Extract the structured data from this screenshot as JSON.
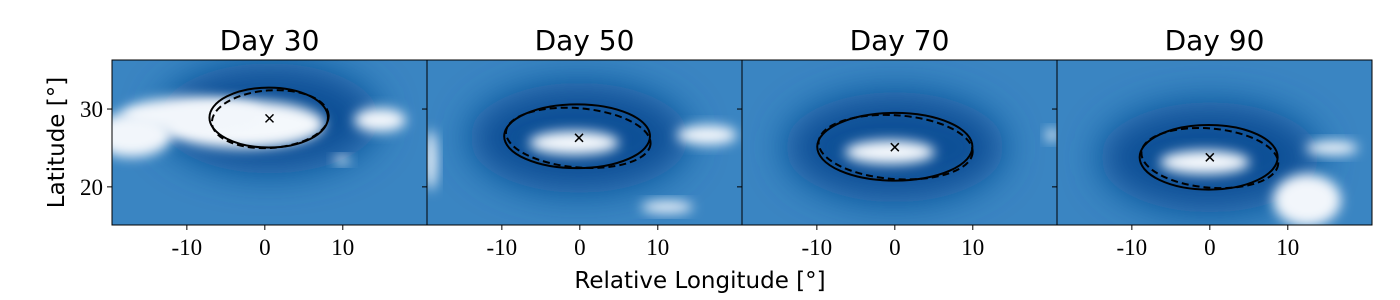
{
  "xlabel": "Relative Longitude [°]",
  "chart_data": [
    {
      "type": "heatmap",
      "title": "Day 30",
      "ylabel": "Latitude [°]",
      "ytick_labels": true,
      "xlim": [
        -19.6,
        20.8
      ],
      "ylim": [
        15.1,
        36.3
      ],
      "xticks": [
        -10,
        0,
        10
      ],
      "yticks": [
        20,
        30
      ],
      "marker": {
        "x": 0.6,
        "y": 28.8
      },
      "ellipses": [
        {
          "x": 0.5,
          "y": 28.9,
          "a": 7.6,
          "b": 3.85,
          "angle": 0,
          "style": "solid"
        },
        {
          "x": 0.7,
          "y": 28.7,
          "a": 7.5,
          "b": 3.7,
          "angle": 4,
          "style": "dashed"
        }
      ]
    },
    {
      "type": "heatmap",
      "title": "Day 50",
      "ytick_labels": false,
      "xlim": [
        -19.6,
        20.8
      ],
      "ylim": [
        15.1,
        36.3
      ],
      "xticks": [
        -10,
        0,
        10
      ],
      "yticks": [
        20,
        30
      ],
      "marker": {
        "x": -0.1,
        "y": 26.3
      },
      "ellipses": [
        {
          "x": -0.35,
          "y": 26.5,
          "a": 9.35,
          "b": 4.1,
          "angle": 0,
          "style": "solid"
        },
        {
          "x": -0.2,
          "y": 26.3,
          "a": 9.3,
          "b": 3.8,
          "angle": -5,
          "style": "dashed"
        }
      ]
    },
    {
      "type": "heatmap",
      "title": "Day 70",
      "ytick_labels": false,
      "xlim": [
        -19.6,
        20.8
      ],
      "ylim": [
        15.1,
        36.3
      ],
      "xticks": [
        -10,
        0,
        10
      ],
      "yticks": [
        20,
        30
      ],
      "marker": {
        "x": 0,
        "y": 25.1
      },
      "ellipses": [
        {
          "x": 0,
          "y": 25.15,
          "a": 9.95,
          "b": 4.35,
          "angle": 0,
          "style": "solid"
        },
        {
          "x": 0.1,
          "y": 25.1,
          "a": 9.9,
          "b": 4.1,
          "angle": -4,
          "style": "dashed"
        }
      ]
    },
    {
      "type": "heatmap",
      "title": "Day 90",
      "ytick_labels": false,
      "xlim": [
        -19.6,
        20.8
      ],
      "ylim": [
        15.1,
        36.3
      ],
      "xticks": [
        -10,
        0,
        10
      ],
      "yticks": [
        20,
        30
      ],
      "marker": {
        "x": 0,
        "y": 23.8
      },
      "ellipses": [
        {
          "x": -0.15,
          "y": 23.8,
          "a": 8.85,
          "b": 4.15,
          "angle": 0,
          "style": "solid"
        },
        {
          "x": 0,
          "y": 23.7,
          "a": 8.8,
          "b": 3.8,
          "angle": -5,
          "style": "dashed"
        }
      ]
    }
  ]
}
